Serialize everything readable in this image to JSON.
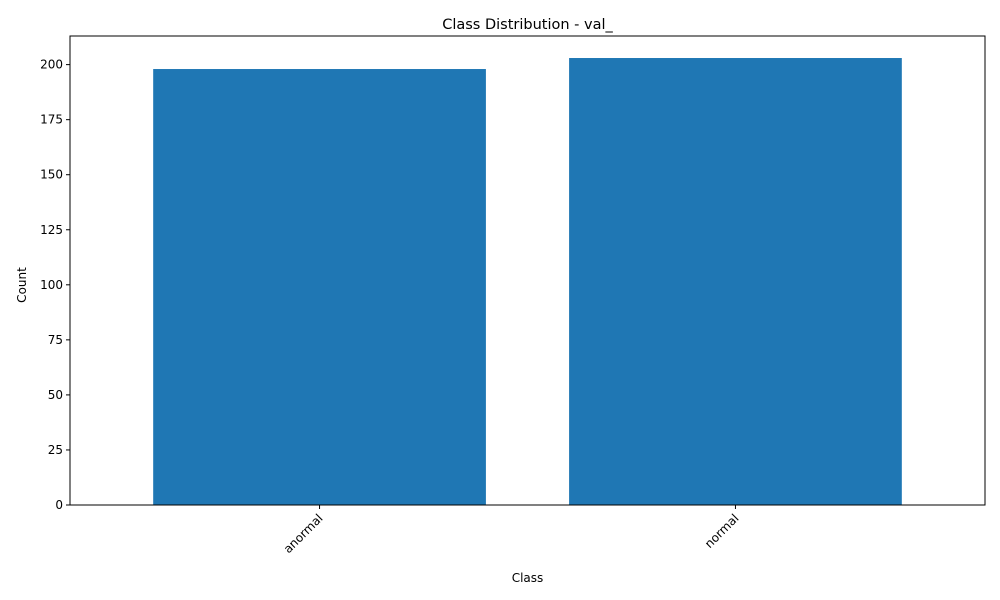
{
  "chart_data": {
    "type": "bar",
    "title": "Class Distribution - val_",
    "xlabel": "Class",
    "ylabel": "Count",
    "categories": [
      "anormal",
      "normal"
    ],
    "values": [
      198,
      203
    ],
    "ylim": [
      0,
      213
    ],
    "yticks": [
      0,
      25,
      50,
      75,
      100,
      125,
      150,
      175,
      200
    ],
    "bar_color": "#1f77b4",
    "grid": false,
    "legend": "none",
    "xtick_rotation": 45
  }
}
